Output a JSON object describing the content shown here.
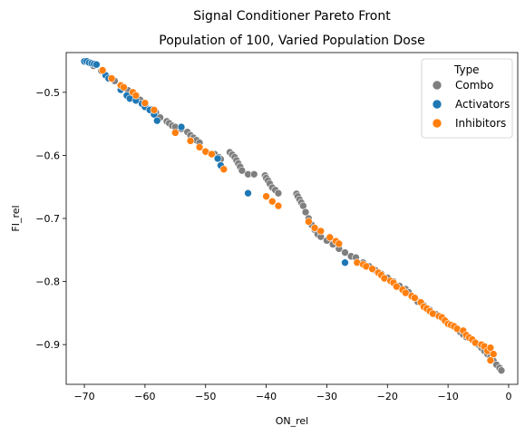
{
  "chart_data": {
    "type": "scatter",
    "title": "Signal Conditioner Pareto Front",
    "subtitle": "Population of 100, Varied Population Dose",
    "xlabel": "ON_rel",
    "ylabel": "FI_rel",
    "xlim": [
      -73,
      1.5
    ],
    "ylim": [
      -0.963,
      -0.437
    ],
    "grid": false,
    "legend_position": "top-right",
    "x_ticks": [
      {
        "value": -70,
        "label": "−70"
      },
      {
        "value": -60,
        "label": "−60"
      },
      {
        "value": -50,
        "label": "−50"
      },
      {
        "value": -40,
        "label": "−40"
      },
      {
        "value": -30,
        "label": "−30"
      },
      {
        "value": -20,
        "label": "−20"
      },
      {
        "value": -10,
        "label": "−10"
      },
      {
        "value": 0,
        "label": "0"
      }
    ],
    "y_ticks": [
      {
        "value": -0.5,
        "label": "−0.5"
      },
      {
        "value": -0.6,
        "label": "−0.6"
      },
      {
        "value": -0.7,
        "label": "−0.7"
      },
      {
        "value": -0.8,
        "label": "−0.8"
      },
      {
        "value": -0.9,
        "label": "−0.9"
      }
    ],
    "legend_title": "Type",
    "series": [
      {
        "name": "Combo",
        "color": "#7f7f7f",
        "points": [
          [
            -69.5,
            -0.452
          ],
          [
            -68.5,
            -0.458
          ],
          [
            -67.2,
            -0.466
          ],
          [
            -66.2,
            -0.475
          ],
          [
            -65.0,
            -0.482
          ],
          [
            -63.8,
            -0.492
          ],
          [
            -62.8,
            -0.497
          ],
          [
            -61.8,
            -0.505
          ],
          [
            -60.8,
            -0.512
          ],
          [
            -59.9,
            -0.52
          ],
          [
            -59.0,
            -0.527
          ],
          [
            -58.2,
            -0.532
          ],
          [
            -57.5,
            -0.54
          ],
          [
            -56.4,
            -0.546
          ],
          [
            -56.0,
            -0.549
          ],
          [
            -55.5,
            -0.553
          ],
          [
            -55.0,
            -0.555
          ],
          [
            -54.0,
            -0.558
          ],
          [
            -53.0,
            -0.563
          ],
          [
            -52.5,
            -0.568
          ],
          [
            -52.0,
            -0.572
          ],
          [
            -51.5,
            -0.576
          ],
          [
            -51.0,
            -0.58
          ],
          [
            -48.5,
            -0.598
          ],
          [
            -47.8,
            -0.603
          ],
          [
            -47.5,
            -0.606
          ],
          [
            -46.0,
            -0.595
          ],
          [
            -45.6,
            -0.599
          ],
          [
            -45.2,
            -0.603
          ],
          [
            -44.9,
            -0.608
          ],
          [
            -44.6,
            -0.613
          ],
          [
            -44.3,
            -0.618
          ],
          [
            -44.0,
            -0.624
          ],
          [
            -43.0,
            -0.63
          ],
          [
            -42.0,
            -0.63
          ],
          [
            -40.2,
            -0.632
          ],
          [
            -40.0,
            -0.636
          ],
          [
            -39.7,
            -0.64
          ],
          [
            -39.4,
            -0.645
          ],
          [
            -39.0,
            -0.651
          ],
          [
            -38.5,
            -0.655
          ],
          [
            -38.0,
            -0.66
          ],
          [
            -35.0,
            -0.661
          ],
          [
            -34.8,
            -0.665
          ],
          [
            -34.5,
            -0.67
          ],
          [
            -34.2,
            -0.675
          ],
          [
            -33.9,
            -0.68
          ],
          [
            -33.5,
            -0.69
          ],
          [
            -33.0,
            -0.7
          ],
          [
            -32.5,
            -0.71
          ],
          [
            -32.0,
            -0.718
          ],
          [
            -31.5,
            -0.725
          ],
          [
            -31.0,
            -0.729
          ],
          [
            -30.0,
            -0.735
          ],
          [
            -29.0,
            -0.741
          ],
          [
            -28.0,
            -0.748
          ],
          [
            -27.0,
            -0.754
          ],
          [
            -26.0,
            -0.76
          ],
          [
            -25.2,
            -0.762
          ],
          [
            -24.0,
            -0.77
          ],
          [
            -23.0,
            -0.776
          ],
          [
            -22.0,
            -0.782
          ],
          [
            -21.0,
            -0.788
          ],
          [
            -20.0,
            -0.794
          ],
          [
            -19.0,
            -0.8
          ],
          [
            -18.0,
            -0.807
          ],
          [
            -17.0,
            -0.812
          ],
          [
            -16.5,
            -0.817
          ],
          [
            -16.0,
            -0.824
          ],
          [
            -15.0,
            -0.832
          ],
          [
            -14.0,
            -0.838
          ],
          [
            -13.0,
            -0.845
          ],
          [
            -12.0,
            -0.852
          ],
          [
            -11.0,
            -0.858
          ],
          [
            -10.0,
            -0.866
          ],
          [
            -9.0,
            -0.872
          ],
          [
            -8.0,
            -0.88
          ],
          [
            -7.5,
            -0.884
          ],
          [
            -7.0,
            -0.888
          ],
          [
            -6.0,
            -0.893
          ],
          [
            -5.0,
            -0.9
          ],
          [
            -4.5,
            -0.905
          ],
          [
            -4.0,
            -0.91
          ],
          [
            -3.5,
            -0.915
          ],
          [
            -3.0,
            -0.92
          ],
          [
            -2.5,
            -0.926
          ],
          [
            -2.0,
            -0.932
          ],
          [
            -1.5,
            -0.937
          ],
          [
            -1.2,
            -0.941
          ]
        ]
      },
      {
        "name": "Activators",
        "color": "#1f77b4",
        "points": [
          [
            -70.0,
            -0.451
          ],
          [
            -69.6,
            -0.451
          ],
          [
            -69.2,
            -0.453
          ],
          [
            -68.8,
            -0.454
          ],
          [
            -68.4,
            -0.455
          ],
          [
            -68.0,
            -0.456
          ],
          [
            -66.5,
            -0.473
          ],
          [
            -66.0,
            -0.478
          ],
          [
            -64.0,
            -0.496
          ],
          [
            -63.0,
            -0.505
          ],
          [
            -62.5,
            -0.51
          ],
          [
            -61.5,
            -0.513
          ],
          [
            -60.5,
            -0.518
          ],
          [
            -60.0,
            -0.523
          ],
          [
            -59.2,
            -0.528
          ],
          [
            -58.5,
            -0.535
          ],
          [
            -58.0,
            -0.545
          ],
          [
            -54.0,
            -0.555
          ],
          [
            -48.0,
            -0.605
          ],
          [
            -47.5,
            -0.616
          ],
          [
            -43.0,
            -0.66
          ],
          [
            -27.0,
            -0.77
          ]
        ]
      },
      {
        "name": "Inhibitors",
        "color": "#ff7f0e",
        "points": [
          [
            -67.0,
            -0.465
          ],
          [
            -65.5,
            -0.478
          ],
          [
            -64.0,
            -0.489
          ],
          [
            -63.5,
            -0.492
          ],
          [
            -62.0,
            -0.5
          ],
          [
            -61.5,
            -0.505
          ],
          [
            -60.0,
            -0.517
          ],
          [
            -58.5,
            -0.528
          ],
          [
            -55.0,
            -0.564
          ],
          [
            -52.5,
            -0.577
          ],
          [
            -51.0,
            -0.587
          ],
          [
            -50.0,
            -0.594
          ],
          [
            -49.0,
            -0.598
          ],
          [
            -47.0,
            -0.622
          ],
          [
            -40.0,
            -0.665
          ],
          [
            -39.0,
            -0.673
          ],
          [
            -38.0,
            -0.68
          ],
          [
            -33.0,
            -0.705
          ],
          [
            -32.0,
            -0.715
          ],
          [
            -31.0,
            -0.72
          ],
          [
            -29.5,
            -0.73
          ],
          [
            -28.5,
            -0.736
          ],
          [
            -28.0,
            -0.74
          ],
          [
            -25.0,
            -0.77
          ],
          [
            -24.0,
            -0.773
          ],
          [
            -23.5,
            -0.776
          ],
          [
            -22.5,
            -0.78
          ],
          [
            -21.5,
            -0.786
          ],
          [
            -21.0,
            -0.79
          ],
          [
            -20.5,
            -0.795
          ],
          [
            -19.5,
            -0.799
          ],
          [
            -19.0,
            -0.802
          ],
          [
            -18.5,
            -0.808
          ],
          [
            -17.5,
            -0.813
          ],
          [
            -17.0,
            -0.818
          ],
          [
            -16.0,
            -0.823
          ],
          [
            -15.5,
            -0.826
          ],
          [
            -14.5,
            -0.833
          ],
          [
            -14.0,
            -0.84
          ],
          [
            -13.5,
            -0.843
          ],
          [
            -13.0,
            -0.847
          ],
          [
            -12.5,
            -0.851
          ],
          [
            -11.5,
            -0.855
          ],
          [
            -11.0,
            -0.857
          ],
          [
            -10.5,
            -0.862
          ],
          [
            -10.0,
            -0.867
          ],
          [
            -9.5,
            -0.869
          ],
          [
            -9.0,
            -0.871
          ],
          [
            -8.5,
            -0.875
          ],
          [
            -7.5,
            -0.878
          ],
          [
            -7.0,
            -0.885
          ],
          [
            -6.5,
            -0.889
          ],
          [
            -6.0,
            -0.892
          ],
          [
            -5.5,
            -0.897
          ],
          [
            -4.5,
            -0.9
          ],
          [
            -4.0,
            -0.903
          ],
          [
            -3.5,
            -0.91
          ],
          [
            -3.0,
            -0.905
          ],
          [
            -2.5,
            -0.915
          ],
          [
            -3.0,
            -0.925
          ]
        ]
      }
    ]
  }
}
